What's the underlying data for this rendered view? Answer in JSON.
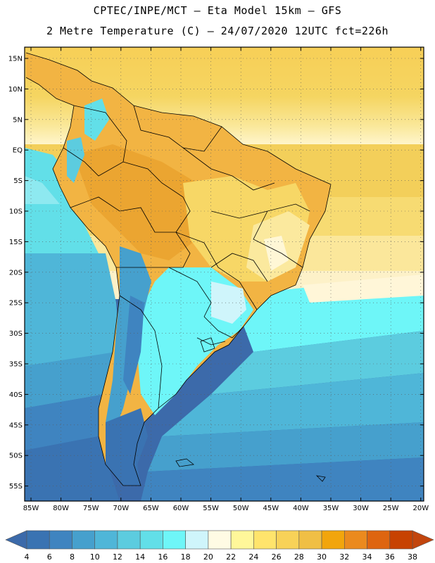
{
  "header": {
    "line1": "CPTEC/INPE/MCT –  Eta Model 15km – GFS",
    "line2": "2 Metre Temperature (C) – 24/07/2020 12UTC fct=226h"
  },
  "map": {
    "lat_labels": [
      "15N",
      "10N",
      "5N",
      "EQ",
      "5S",
      "10S",
      "15S",
      "20S",
      "25S",
      "30S",
      "35S",
      "40S",
      "45S",
      "50S",
      "55S"
    ],
    "lon_labels": [
      "85W",
      "80W",
      "75W",
      "70W",
      "65W",
      "60W",
      "55W",
      "50W",
      "45W",
      "40W",
      "35W",
      "30W",
      "25W",
      "20W"
    ]
  },
  "colorbar": {
    "labels": [
      "4",
      "6",
      "8",
      "10",
      "12",
      "14",
      "16",
      "18",
      "20",
      "22",
      "24",
      "26",
      "28",
      "30",
      "32",
      "34",
      "36",
      "38"
    ],
    "colors": [
      "#3a73b2",
      "#3f84c0",
      "#46a0cd",
      "#4fb6d8",
      "#5cccdf",
      "#62dfe8",
      "#6ef6f8",
      "#cff5fb",
      "#fffbe4",
      "#fff79a",
      "#ffe46c",
      "#f8d258",
      "#f0bf45",
      "#f2a50c",
      "#eb8a1e",
      "#de6510",
      "#c74202"
    ],
    "under_color": "#3c6aaa",
    "over_color": "#c2450d"
  }
}
